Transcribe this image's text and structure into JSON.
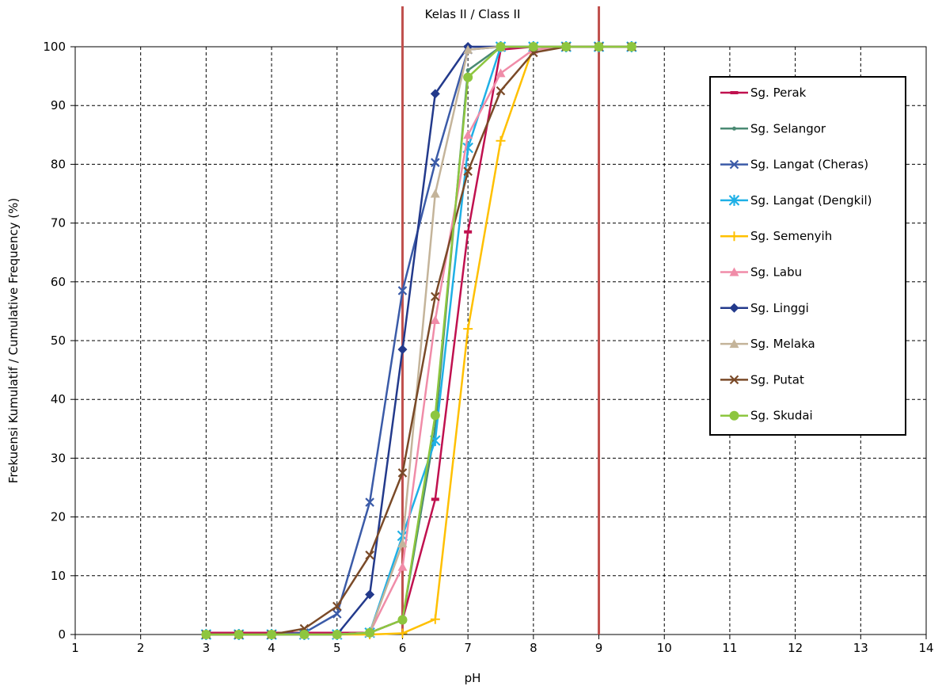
{
  "chart_data": {
    "type": "line",
    "title": "",
    "xlabel": "pH",
    "ylabel": "Frekuensi Kumulatif / Cumulative Frequency (%)",
    "xlim": [
      1,
      14
    ],
    "ylim": [
      0,
      100
    ],
    "x_ticks": [
      1,
      2,
      3,
      4,
      5,
      6,
      7,
      8,
      9,
      10,
      11,
      12,
      13,
      14
    ],
    "y_ticks": [
      0,
      10,
      20,
      30,
      40,
      50,
      60,
      70,
      80,
      90,
      100
    ],
    "grid": true,
    "legend_position": "right",
    "class_band": {
      "label": "Kelas II / Class II",
      "min": 6,
      "max": 9,
      "color": "#c0504d"
    },
    "series": [
      {
        "name": "Sg. Perak",
        "color": "#c0114f",
        "marker": "dash",
        "x": [
          3,
          3.5,
          4,
          4.5,
          5,
          5.5,
          6,
          6.5,
          7,
          7.5,
          8,
          8.5,
          9,
          9.5
        ],
        "y": [
          0.3,
          0.3,
          0.3,
          0.3,
          0.3,
          0.3,
          2.5,
          23,
          68.5,
          99.5,
          100,
          100,
          100,
          100
        ]
      },
      {
        "name": "Sg. Selangor",
        "color": "#4a8a73",
        "marker": "dot",
        "x": [
          3,
          3.5,
          4,
          4.5,
          5,
          5.5,
          6,
          6.5,
          7,
          7.5,
          8,
          8.5,
          9,
          9.5
        ],
        "y": [
          0,
          0,
          0,
          0,
          0,
          0.3,
          2.5,
          35,
          96,
          100,
          100,
          100,
          100,
          100
        ]
      },
      {
        "name": "Sg. Langat (Cheras)",
        "color": "#3b5ba8",
        "marker": "x",
        "x": [
          3,
          3.5,
          4,
          4.5,
          5,
          5.5,
          6,
          6.5,
          7,
          7.5,
          8,
          8.5,
          9,
          9.5
        ],
        "y": [
          0,
          0,
          0,
          0.3,
          3.5,
          22.5,
          58.5,
          80.3,
          99.5,
          100,
          100,
          100,
          100,
          100
        ]
      },
      {
        "name": "Sg. Langat (Dengkil)",
        "color": "#1fb0e6",
        "marker": "star",
        "x": [
          3,
          3.5,
          4,
          4.5,
          5,
          5.5,
          6,
          6.5,
          7,
          7.5,
          8,
          8.5,
          9,
          9.5
        ],
        "y": [
          0,
          0,
          0,
          0,
          0,
          0.3,
          16.8,
          33,
          82.8,
          100,
          100,
          100,
          100,
          100
        ]
      },
      {
        "name": "Sg. Semenyih",
        "color": "#ffc000",
        "marker": "plus",
        "x": [
          3,
          3.5,
          4,
          4.5,
          5,
          5.5,
          6,
          6.5,
          7,
          7.5,
          8,
          8.5,
          9,
          9.5
        ],
        "y": [
          0,
          0,
          0,
          0,
          0,
          0,
          0.2,
          2.6,
          52,
          84,
          100,
          100,
          100,
          100
        ]
      },
      {
        "name": "Sg. Labu",
        "color": "#f08ca8",
        "marker": "triangle",
        "x": [
          3,
          3.5,
          4,
          4.5,
          5,
          5.5,
          6,
          6.5,
          7,
          7.5,
          8,
          8.5,
          9,
          9.5
        ],
        "y": [
          0,
          0,
          0,
          0,
          0,
          0.3,
          11.5,
          53.5,
          85,
          95.5,
          99.5,
          100,
          100,
          100
        ]
      },
      {
        "name": "Sg. Linggi",
        "color": "#233a8c",
        "marker": "diamond",
        "x": [
          3,
          3.5,
          4,
          4.5,
          5,
          5.5,
          6,
          6.5,
          7,
          7.5,
          8,
          8.5,
          9,
          9.5
        ],
        "y": [
          0,
          0,
          0,
          0,
          0,
          6.8,
          48.5,
          92,
          100,
          100,
          100,
          100,
          100,
          100
        ]
      },
      {
        "name": "Sg. Melaka",
        "color": "#c4b49a",
        "marker": "triangle",
        "x": [
          3,
          3.5,
          4,
          4.5,
          5,
          5.5,
          6,
          6.5,
          7,
          7.5,
          8,
          8.5,
          9,
          9.5
        ],
        "y": [
          0,
          0,
          0,
          0,
          0,
          0.3,
          15.5,
          75,
          99.5,
          100,
          100,
          100,
          100,
          100
        ]
      },
      {
        "name": "Sg. Putat",
        "color": "#7a4a28",
        "marker": "x",
        "x": [
          3,
          3.5,
          4,
          4.5,
          5,
          5.5,
          6,
          6.5,
          7,
          7.5,
          8,
          8.5,
          9,
          9.5
        ],
        "y": [
          0,
          0,
          0,
          1,
          4.8,
          13.5,
          27.5,
          57.5,
          78.8,
          92.5,
          99,
          100,
          100,
          100
        ]
      },
      {
        "name": "Sg. Skudai",
        "color": "#8dc63f",
        "marker": "circle",
        "x": [
          3,
          3.5,
          4,
          4.5,
          5,
          5.5,
          6,
          6.5,
          7,
          7.5,
          8,
          8.5,
          9,
          9.5
        ],
        "y": [
          0,
          0,
          0,
          0,
          0,
          0.3,
          2.5,
          37.3,
          94.8,
          100,
          100,
          100,
          100,
          100
        ]
      }
    ]
  }
}
